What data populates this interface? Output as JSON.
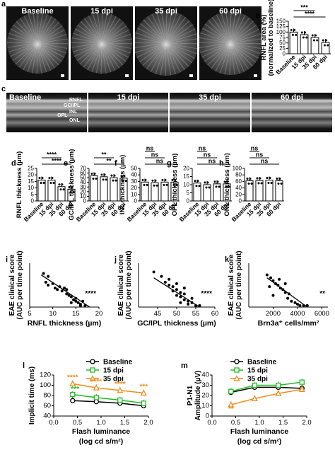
{
  "panels": {
    "a": {
      "letter": "a",
      "images": [
        {
          "label": "Baseline"
        },
        {
          "label": "15 dpi"
        },
        {
          "label": "35 dpi"
        },
        {
          "label": "60 dpi"
        }
      ]
    },
    "c": {
      "letter": "c",
      "images": [
        {
          "label": "Baseline"
        },
        {
          "label": "15 dpi"
        },
        {
          "label": "35 dpi"
        },
        {
          "label": "60 dpi"
        }
      ],
      "layers": [
        "RNFL",
        "GC/IPL",
        "INL",
        "OPL",
        "ONL"
      ]
    }
  },
  "chart_data": [
    {
      "id": "b",
      "letter": "b",
      "type": "bar",
      "ylabel": "RNFL area (%)",
      "ylabel2": "(normalized to baseline)",
      "categories": [
        "Baseline",
        "15 dpi",
        "35 dpi",
        "60 dpi"
      ],
      "values": [
        100,
        88,
        75,
        52
      ],
      "ylim": [
        0,
        150
      ],
      "yticks": [
        0,
        25,
        50,
        75,
        100,
        125,
        150
      ],
      "sig": [
        {
          "from": 0,
          "to": 3,
          "label": "****"
        },
        {
          "from": 0,
          "to": 2,
          "label": "***"
        }
      ]
    },
    {
      "id": "d",
      "letter": "d",
      "type": "bar",
      "ylabel": "RNFL thickness (µm)",
      "categories": [
        "Baseline",
        "15 dpi",
        "35 dpi",
        "60 dpi"
      ],
      "values": [
        16,
        16,
        11,
        9
      ],
      "ylim": [
        0,
        25
      ],
      "yticks": [
        0,
        5,
        10,
        15,
        20,
        25
      ],
      "sig": [
        {
          "from": 0,
          "to": 3,
          "label": "****"
        },
        {
          "from": 0,
          "to": 2,
          "label": "****"
        }
      ]
    },
    {
      "id": "e",
      "letter": "e",
      "type": "bar",
      "ylabel": "GC/IPL thickness (µm)",
      "categories": [
        "Baseline",
        "15 dpi",
        "35 dpi",
        "60 dpi"
      ],
      "values": [
        54,
        52,
        50,
        49
      ],
      "ylim": [
        0,
        70
      ],
      "yticks": [
        0,
        10,
        20,
        30,
        40,
        50,
        60,
        70
      ],
      "sig": [
        {
          "from": 0,
          "to": 3,
          "label": "**"
        },
        {
          "from": 0,
          "to": 2,
          "label": "**"
        }
      ]
    },
    {
      "id": "f",
      "letter": "f",
      "type": "bar",
      "ylabel": "INL thickness (µm)",
      "categories": [
        "Baseline",
        "15 dpi",
        "35 dpi",
        "60 dpi"
      ],
      "values": [
        29,
        28,
        29,
        29
      ],
      "ylim": [
        0,
        50
      ],
      "yticks": [
        0,
        10,
        20,
        30,
        40,
        50
      ],
      "sig": [
        {
          "from": 0,
          "to": 3,
          "label": "ns"
        },
        {
          "from": 0,
          "to": 2,
          "label": "ns"
        },
        {
          "from": 0,
          "to": 1,
          "label": "ns"
        }
      ]
    },
    {
      "id": "g",
      "letter": "g",
      "type": "bar",
      "ylabel": "OPL thickness (µm)",
      "categories": [
        "Baseline",
        "15 dpi",
        "35 dpi",
        "60 dpi"
      ],
      "values": [
        11,
        10,
        10.5,
        10.5
      ],
      "ylim": [
        0,
        20
      ],
      "yticks": [
        0,
        5,
        10,
        15,
        20
      ],
      "sig": [
        {
          "from": 0,
          "to": 3,
          "label": "ns"
        },
        {
          "from": 0,
          "to": 2,
          "label": "ns"
        },
        {
          "from": 0,
          "to": 1,
          "label": "ns"
        }
      ]
    },
    {
      "id": "h",
      "letter": "h",
      "type": "bar",
      "ylabel": "ONL thickness (µm)",
      "categories": [
        "Baseline",
        "15 dpi",
        "35 dpi",
        "60 dpi"
      ],
      "values": [
        62,
        63,
        64,
        62
      ],
      "ylim": [
        0,
        100
      ],
      "yticks": [
        0,
        20,
        40,
        60,
        80,
        100
      ],
      "sig": [
        {
          "from": 0,
          "to": 3,
          "label": "ns"
        },
        {
          "from": 0,
          "to": 2,
          "label": "ns"
        },
        {
          "from": 0,
          "to": 1,
          "label": "ns"
        }
      ]
    },
    {
      "id": "i",
      "letter": "i",
      "type": "scatter",
      "xlabel": "RNFL thickness (µm)",
      "ylabel": "EAE clinical score",
      "ylabel2": "(AUC per time point)",
      "xlim": [
        5,
        20
      ],
      "xticks": [
        5,
        10,
        15,
        20
      ],
      "ylim": [
        0,
        30
      ],
      "sig": "****",
      "points": [
        [
          8,
          23
        ],
        [
          9,
          21
        ],
        [
          8.5,
          17
        ],
        [
          9,
          15
        ],
        [
          10,
          16
        ],
        [
          10.5,
          13
        ],
        [
          11,
          12
        ],
        [
          11.5,
          14
        ],
        [
          12,
          11
        ],
        [
          12.5,
          13
        ],
        [
          13,
          9
        ],
        [
          13.5,
          8
        ],
        [
          14,
          7
        ],
        [
          14.5,
          5
        ],
        [
          15,
          4
        ],
        [
          15.5,
          3
        ],
        [
          16,
          2
        ],
        [
          16.5,
          4
        ],
        [
          17,
          1
        ],
        [
          15,
          6
        ],
        [
          14,
          3
        ],
        [
          16,
          1
        ],
        [
          13,
          12
        ]
      ],
      "fit": [
        [
          7.5,
          22
        ],
        [
          18,
          0
        ]
      ]
    },
    {
      "id": "j",
      "letter": "j",
      "type": "scatter",
      "xlabel": "GC/IPL thickness (µm)",
      "ylabel": "EAE clinical score",
      "ylabel2": "(AUC per time point)",
      "xlim": [
        40,
        60
      ],
      "xticks": [
        45,
        50,
        55,
        60
      ],
      "ylim": [
        0,
        30
      ],
      "sig": "****",
      "points": [
        [
          44,
          24
        ],
        [
          46,
          21
        ],
        [
          47,
          17
        ],
        [
          48,
          15
        ],
        [
          49,
          14
        ],
        [
          50,
          12
        ],
        [
          49,
          11
        ],
        [
          51,
          10
        ],
        [
          52,
          9
        ],
        [
          50,
          8
        ],
        [
          51,
          7
        ],
        [
          52,
          5
        ],
        [
          53,
          4
        ],
        [
          54,
          3
        ],
        [
          53,
          2
        ],
        [
          55,
          1
        ],
        [
          50,
          16
        ],
        [
          48,
          19
        ],
        [
          52,
          13
        ],
        [
          54,
          6
        ],
        [
          56,
          1
        ],
        [
          51,
          3
        ]
      ],
      "fit": [
        [
          44,
          20
        ],
        [
          56,
          0
        ]
      ]
    },
    {
      "id": "k",
      "letter": "k",
      "type": "scatter",
      "xlabel": "Brn3a⁺ cells/mm²",
      "ylabel": "EAE clinical score",
      "ylabel2": "(AUC per time point)",
      "xlim": [
        0,
        6500
      ],
      "xticks": [
        2000,
        4000,
        6000
      ],
      "ylim": [
        0,
        30
      ],
      "sig": "**",
      "points": [
        [
          1500,
          22
        ],
        [
          1800,
          20
        ],
        [
          2000,
          18
        ],
        [
          2200,
          16
        ],
        [
          2400,
          15
        ],
        [
          2600,
          13
        ],
        [
          2800,
          12
        ],
        [
          3000,
          10
        ],
        [
          2000,
          8
        ],
        [
          3200,
          6
        ],
        [
          3500,
          4
        ],
        [
          3800,
          3
        ],
        [
          4000,
          2
        ],
        [
          4200,
          1
        ],
        [
          4500,
          1
        ],
        [
          2500,
          19
        ],
        [
          1700,
          14
        ],
        [
          3000,
          16
        ],
        [
          4800,
          1
        ],
        [
          3300,
          9
        ]
      ],
      "fit": [
        [
          1500,
          20
        ],
        [
          4800,
          0
        ]
      ]
    },
    {
      "id": "l",
      "letter": "l",
      "type": "line",
      "xlabel": "Flash luminance",
      "xlabel2": "(log cd s/m²)",
      "ylabel": "Implicit time (ms)",
      "xlim": [
        0,
        2
      ],
      "xticks": [
        0.0,
        0.5,
        1.0,
        1.5,
        2.0
      ],
      "ylim": [
        40,
        120
      ],
      "yticks": [
        40,
        60,
        80,
        100,
        120
      ],
      "x": [
        0.4,
        0.9,
        1.4,
        1.9
      ],
      "series": [
        {
          "name": "Baseline",
          "color": "#000000",
          "marker": "circle",
          "values": [
            70,
            68,
            65,
            60
          ]
        },
        {
          "name": "15 dpi",
          "color": "#22bb22",
          "marker": "square",
          "values": [
            82,
            76,
            71,
            65
          ]
        },
        {
          "name": "35 dpi",
          "color": "#f28c1a",
          "marker": "triangle",
          "values": [
            103,
            95,
            90,
            85
          ]
        }
      ],
      "annotations": [
        {
          "x": 0.4,
          "y": 111,
          "text": "****",
          "color": "#f28c1a"
        },
        {
          "x": 0.9,
          "y": 103,
          "text": "****",
          "color": "#f28c1a"
        },
        {
          "x": 1.4,
          "y": 98,
          "text": "****",
          "color": "#f28c1a"
        },
        {
          "x": 1.9,
          "y": 93,
          "text": "***",
          "color": "#f28c1a"
        },
        {
          "x": 0.45,
          "y": 88,
          "text": "***",
          "color": "#22bb22"
        }
      ]
    },
    {
      "id": "m",
      "letter": "m",
      "type": "line",
      "xlabel": "Flash luminance",
      "xlabel2": "(log cd s/m²)",
      "ylabel": "P1-N1",
      "ylabel2": "Amplitude (µV)",
      "xlim": [
        0,
        2
      ],
      "xticks": [
        0.0,
        0.5,
        1.0,
        1.5,
        2.0
      ],
      "ylim": [
        0,
        40
      ],
      "yticks": [
        0,
        10,
        20,
        30,
        40
      ],
      "x": [
        0.4,
        0.9,
        1.4,
        1.9
      ],
      "series": [
        {
          "name": "Baseline",
          "color": "#000000",
          "marker": "circle",
          "values": [
            23,
            28,
            28,
            27
          ]
        },
        {
          "name": "15 dpi",
          "color": "#22bb22",
          "marker": "square",
          "values": [
            24,
            30,
            30,
            33
          ]
        },
        {
          "name": "35 dpi",
          "color": "#f28c1a",
          "marker": "triangle",
          "values": [
            11,
            17,
            22,
            26
          ]
        }
      ],
      "annotations": [
        {
          "x": 0.4,
          "y": 5,
          "text": "**",
          "color": "#f28c1a"
        }
      ]
    }
  ]
}
